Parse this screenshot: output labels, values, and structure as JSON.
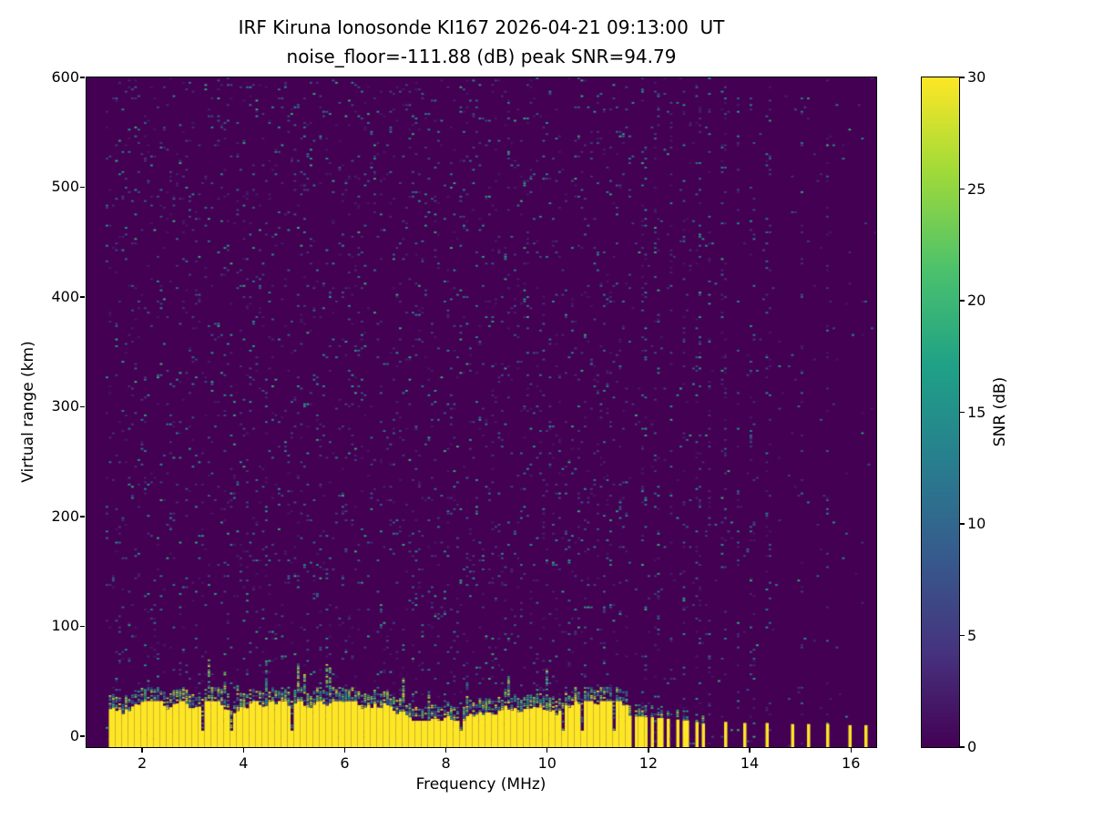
{
  "figure": {
    "title_line1": "IRF Kiruna Ionosonde KI167 2026-04-21 09:13:00  UT",
    "title_line2": "noise_floor=-111.88 (dB) peak SNR=94.79",
    "xlabel": "Frequency (MHz)",
    "ylabel": "Virtual range (km)",
    "colorbar_label": "SNR (dB)"
  },
  "chart_data": {
    "type": "heatmap",
    "title": "IRF Kiruna Ionosonde KI167 2026-04-21 09:13:00  UT",
    "subtitle": "noise_floor=-111.88 (dB) peak SNR=94.79",
    "station": "KI167",
    "timestamp_ut": "2026-04-21 09:13:00",
    "noise_floor_db": -111.88,
    "peak_snr_db": 94.79,
    "xlabel": "Frequency (MHz)",
    "ylabel": "Virtual range (km)",
    "x_range": [
      0.9,
      16.5
    ],
    "y_range": [
      -10,
      600
    ],
    "x_ticks": [
      2,
      4,
      6,
      8,
      10,
      12,
      14,
      16
    ],
    "y_ticks": [
      0,
      100,
      200,
      300,
      400,
      500,
      600
    ],
    "grid": false,
    "colorbar": {
      "label": "SNR (dB)",
      "min": 0,
      "max": 30,
      "ticks": [
        0,
        5,
        10,
        15,
        20,
        25,
        30
      ],
      "colormap": "viridis"
    },
    "viridis_stops": [
      [
        0.0,
        "#440154"
      ],
      [
        0.14,
        "#46327e"
      ],
      [
        0.29,
        "#365c8d"
      ],
      [
        0.43,
        "#277f8e"
      ],
      [
        0.57,
        "#1fa187"
      ],
      [
        0.71,
        "#4ac16d"
      ],
      [
        0.86,
        "#a0da39"
      ],
      [
        1.0,
        "#fde725"
      ]
    ],
    "features": {
      "background_snr_db": 0,
      "noise_speckle": {
        "start_mhz": 1.3,
        "boundary_mhz": 11.62,
        "density_low_freq": 0.06,
        "density_mid_freq": 0.02,
        "density_high_freq": 0.008,
        "value_range_db": [
          2,
          20
        ]
      },
      "rfi_columns_mhz": [
        11.92,
        12.18,
        12.45,
        12.72,
        12.98,
        13.22,
        13.48,
        13.78,
        14.06,
        14.36,
        15.05,
        15.55
      ],
      "ground_echo_band": {
        "freq_start_mhz": 1.35,
        "freq_end_mhz": 11.62,
        "top_km_min": 20,
        "top_km_max": 38,
        "snr_db": 30
      },
      "striped_echo_stripes": [
        {
          "mhz": 11.66,
          "top_km": 26,
          "halfwidth_mhz": 0.04
        },
        {
          "mhz": 11.76,
          "top_km": 25,
          "halfwidth_mhz": 0.04
        },
        {
          "mhz": 11.86,
          "top_km": 25,
          "halfwidth_mhz": 0.04
        },
        {
          "mhz": 11.97,
          "top_km": 24,
          "halfwidth_mhz": 0.04
        },
        {
          "mhz": 12.1,
          "top_km": 24,
          "halfwidth_mhz": 0.04
        },
        {
          "mhz": 12.24,
          "top_km": 23,
          "halfwidth_mhz": 0.04
        },
        {
          "mhz": 12.4,
          "top_km": 22,
          "halfwidth_mhz": 0.04
        },
        {
          "mhz": 12.56,
          "top_km": 21,
          "halfwidth_mhz": 0.04
        },
        {
          "mhz": 12.74,
          "top_km": 20,
          "halfwidth_mhz": 0.04
        },
        {
          "mhz": 12.94,
          "top_km": 18,
          "halfwidth_mhz": 0.04
        },
        {
          "mhz": 13.06,
          "top_km": 16,
          "halfwidth_mhz": 0.035
        }
      ],
      "sparse_stripes": [
        {
          "mhz": 13.5,
          "top_km": 13,
          "halfwidth_mhz": 0.035
        },
        {
          "mhz": 13.92,
          "top_km": 12,
          "halfwidth_mhz": 0.035
        },
        {
          "mhz": 14.36,
          "top_km": 12,
          "halfwidth_mhz": 0.035
        },
        {
          "mhz": 14.86,
          "top_km": 11,
          "halfwidth_mhz": 0.035
        },
        {
          "mhz": 15.17,
          "top_km": 11,
          "halfwidth_mhz": 0.035
        },
        {
          "mhz": 15.55,
          "top_km": 11,
          "halfwidth_mhz": 0.035
        },
        {
          "mhz": 16.0,
          "top_km": 10,
          "halfwidth_mhz": 0.035
        },
        {
          "mhz": 16.3,
          "top_km": 10,
          "halfwidth_mhz": 0.035
        }
      ]
    }
  }
}
